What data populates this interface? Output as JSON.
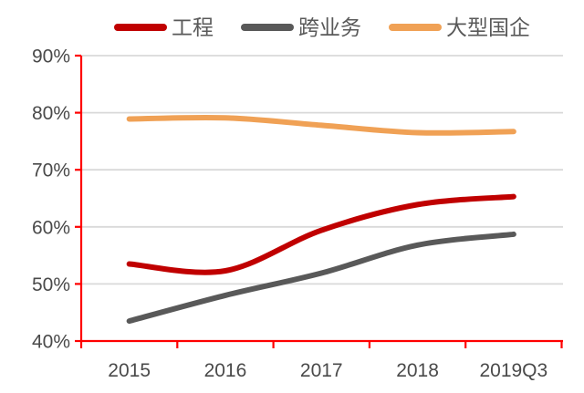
{
  "chart_data": {
    "type": "line",
    "title": "",
    "smooth": true,
    "legend_position": "top",
    "grid": "horizontal",
    "categories": [
      "2015",
      "2016",
      "2017",
      "2018",
      "2019Q3"
    ],
    "series": [
      {
        "name": "工程",
        "color": "#C00000",
        "values": [
          53.5,
          52.3,
          59.4,
          63.9,
          65.3
        ]
      },
      {
        "name": "跨业务",
        "color": "#595959",
        "values": [
          43.5,
          48.0,
          51.9,
          56.8,
          58.7
        ]
      },
      {
        "name": "大型国企",
        "color": "#F0A155",
        "values": [
          78.9,
          79.1,
          77.8,
          76.5,
          76.7
        ]
      }
    ],
    "y_axis": {
      "min": 40,
      "max": 90,
      "step": 10,
      "tick_labels": [
        "40%",
        "50%",
        "60%",
        "70%",
        "80%",
        "90%"
      ],
      "format": "percent"
    },
    "x_axis": {
      "tick_labels": [
        "2015",
        "2016",
        "2017",
        "2018",
        "2019Q3"
      ]
    },
    "colors": {
      "axis": "#FF0000",
      "gridline": "#D9D9D9",
      "axis_label": "#4A4A4A",
      "legend_text": "#595959",
      "background": "#FFFFFF"
    }
  }
}
